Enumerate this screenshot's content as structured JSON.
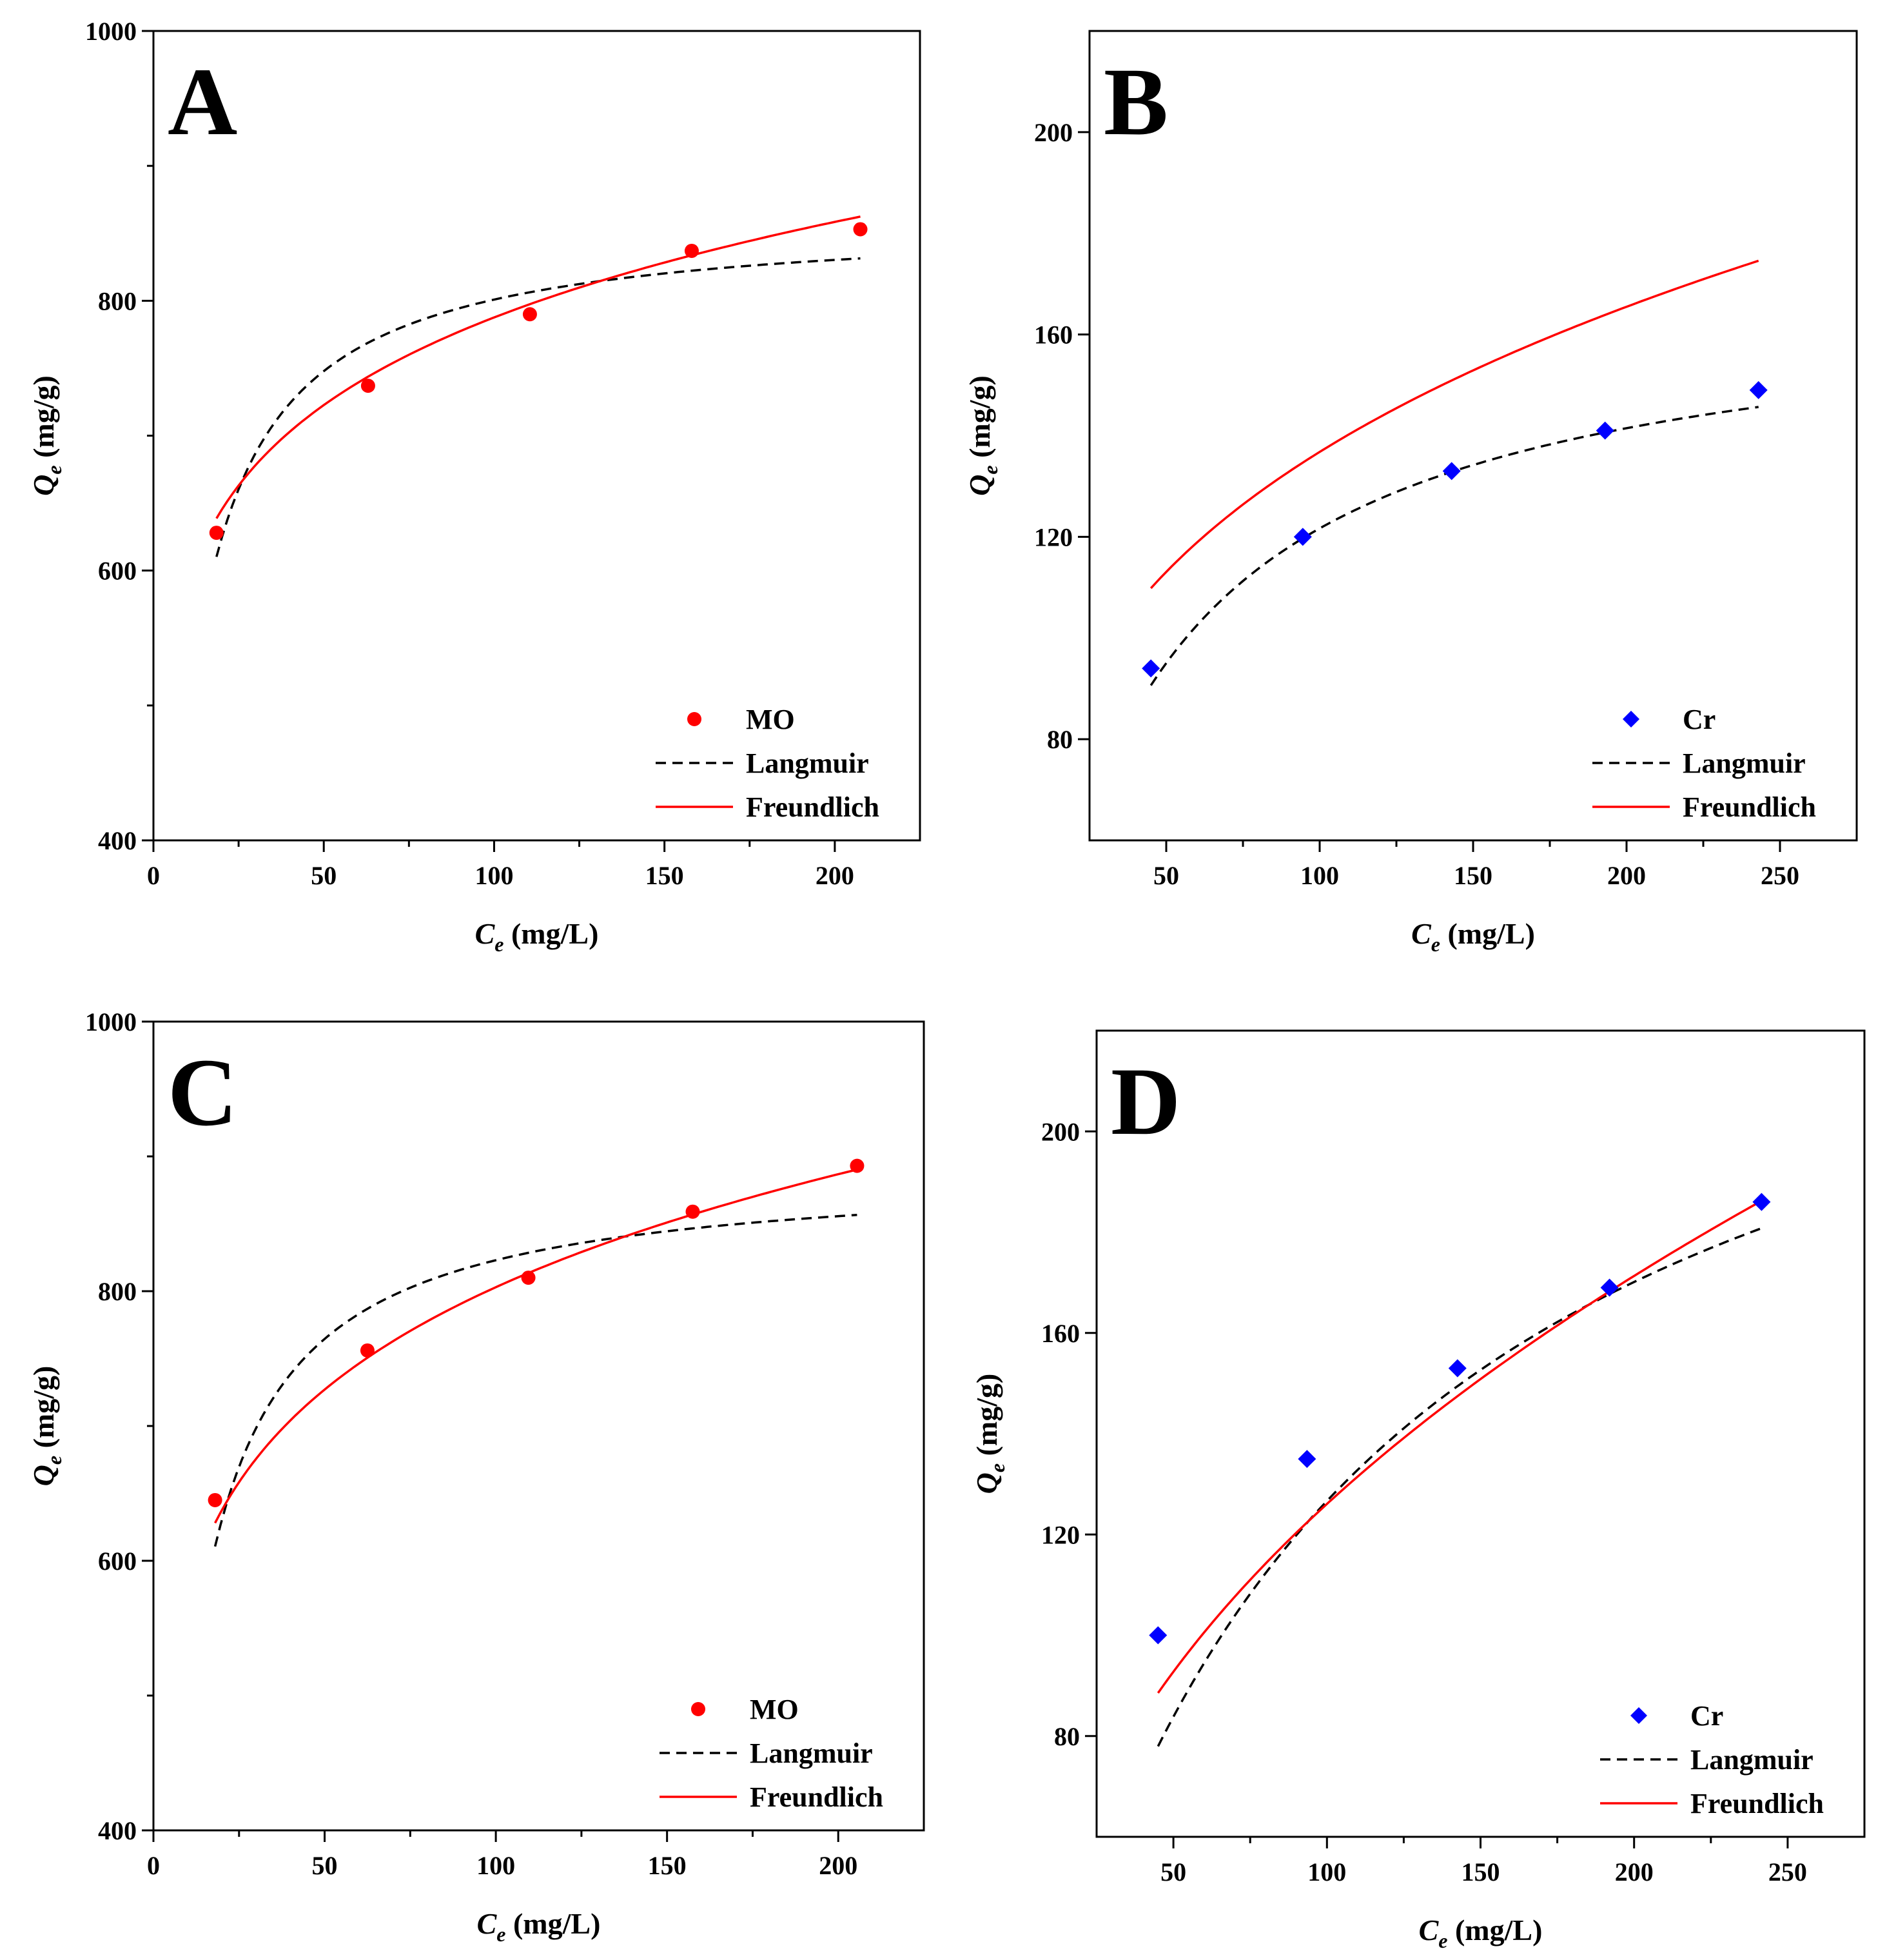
{
  "figure": {
    "background": "#ffffff"
  },
  "chart_data": [
    {
      "panel_label": "A",
      "type": "scatter",
      "xlabel": {
        "main": "C",
        "sub": "e",
        "unit": " (mg/L)"
      },
      "ylabel": {
        "main": "Q",
        "sub": "e",
        "unit": " (mg/g)"
      },
      "xlim": [
        0,
        225
      ],
      "ylim": [
        400,
        1000
      ],
      "xticks": [
        0,
        50,
        100,
        150,
        200
      ],
      "yticks": [
        400,
        600,
        800,
        1000
      ],
      "yminor": [
        500,
        700,
        900
      ],
      "legend_position": "bottom-right",
      "series": [
        {
          "name": "MO",
          "kind": "points",
          "marker": "circle",
          "color": "#ff0000",
          "x": [
            18.5,
            63,
            110.5,
            158,
            207.5
          ],
          "y": [
            628,
            737,
            790,
            837,
            853
          ]
        },
        {
          "name": "Langmuir",
          "kind": "curve",
          "style": "dashed",
          "color": "#000000",
          "model": "langmuir",
          "params": {
            "qmax": 862,
            "KL": 0.131
          },
          "domain": [
            18.5,
            207.5
          ]
        },
        {
          "name": "Freundlich",
          "kind": "curve",
          "style": "solid",
          "color": "#ff0000",
          "model": "freundlich",
          "params": {
            "KF": 444.5,
            "n": 8.05
          },
          "domain": [
            18.5,
            207.5
          ]
        }
      ]
    },
    {
      "panel_label": "B",
      "type": "scatter",
      "xlabel": {
        "main": "C",
        "sub": "e",
        "unit": " (mg/L)"
      },
      "ylabel": {
        "main": "Q",
        "sub": "e",
        "unit": " (mg/g)"
      },
      "xlim": [
        25,
        275
      ],
      "ylim": [
        60,
        220
      ],
      "xticks": [
        50,
        100,
        150,
        200,
        250
      ],
      "yticks": [
        80,
        120,
        160,
        200
      ],
      "yminor": [],
      "legend_position": "bottom-right",
      "series": [
        {
          "name": "Cr",
          "kind": "points",
          "marker": "diamond",
          "color": "#0000ff",
          "x": [
            45,
            94.5,
            143,
            193,
            243
          ],
          "y": [
            94,
            120,
            133,
            141,
            149
          ]
        },
        {
          "name": "Langmuir",
          "kind": "curve",
          "style": "dashed",
          "color": "#000000",
          "model": "langmuir",
          "params": {
            "qmax": 169,
            "KL": 0.0257
          },
          "domain": [
            45,
            243
          ]
        },
        {
          "name": "Freundlich",
          "kind": "curve",
          "style": "solid",
          "color": "#ff0000",
          "model": "freundlich",
          "params": {
            "KF": 38.6,
            "n": 3.64
          },
          "domain": [
            45,
            243
          ]
        }
      ]
    },
    {
      "panel_label": "C",
      "type": "scatter",
      "xlabel": {
        "main": "C",
        "sub": "e",
        "unit": " (mg/L)"
      },
      "ylabel": {
        "main": "Q",
        "sub": "e",
        "unit": " (mg/g)"
      },
      "xlim": [
        0,
        225
      ],
      "ylim": [
        400,
        1000
      ],
      "xticks": [
        0,
        50,
        100,
        150,
        200
      ],
      "yticks": [
        400,
        600,
        800,
        1000
      ],
      "yminor": [
        500,
        700,
        900
      ],
      "legend_position": "bottom-right",
      "series": [
        {
          "name": "MO",
          "kind": "points",
          "marker": "circle",
          "color": "#ff0000",
          "x": [
            18,
            62.5,
            109.5,
            157.5,
            205.5
          ],
          "y": [
            645,
            756,
            810,
            859,
            893
          ]
        },
        {
          "name": "Langmuir",
          "kind": "curve",
          "style": "dashed",
          "color": "#000000",
          "model": "langmuir",
          "params": {
            "qmax": 891,
            "KL": 0.121
          },
          "domain": [
            18,
            205.5
          ]
        },
        {
          "name": "Freundlich",
          "kind": "curve",
          "style": "solid",
          "color": "#ff0000",
          "model": "freundlich",
          "params": {
            "KF": 415.1,
            "n": 6.98
          },
          "domain": [
            18,
            205.5
          ]
        }
      ]
    },
    {
      "panel_label": "D",
      "type": "scatter",
      "xlabel": {
        "main": "C",
        "sub": "e",
        "unit": " (mg/L)"
      },
      "ylabel": {
        "main": "Q",
        "sub": "e",
        "unit": " (mg/g)"
      },
      "xlim": [
        25,
        275
      ],
      "ylim": [
        60,
        220
      ],
      "xticks": [
        50,
        100,
        150,
        200,
        250
      ],
      "yticks": [
        80,
        120,
        160,
        200
      ],
      "yminor": [],
      "legend_position": "bottom-right",
      "series": [
        {
          "name": "Cr",
          "kind": "points",
          "marker": "diamond",
          "color": "#0000ff",
          "x": [
            45,
            93.5,
            142.5,
            192,
            241.5
          ],
          "y": [
            100,
            135,
            153,
            169,
            186
          ]
        },
        {
          "name": "Langmuir",
          "kind": "curve",
          "style": "dashed",
          "color": "#000000",
          "model": "langmuir",
          "params": {
            "qmax": 259,
            "KL": 0.00957
          },
          "domain": [
            45,
            241.5
          ]
        },
        {
          "name": "Freundlich",
          "kind": "curve",
          "style": "solid",
          "color": "#ff0000",
          "model": "freundlich",
          "params": {
            "KF": 16.43,
            "n": 2.26
          },
          "domain": [
            45,
            241.5
          ]
        }
      ]
    }
  ]
}
